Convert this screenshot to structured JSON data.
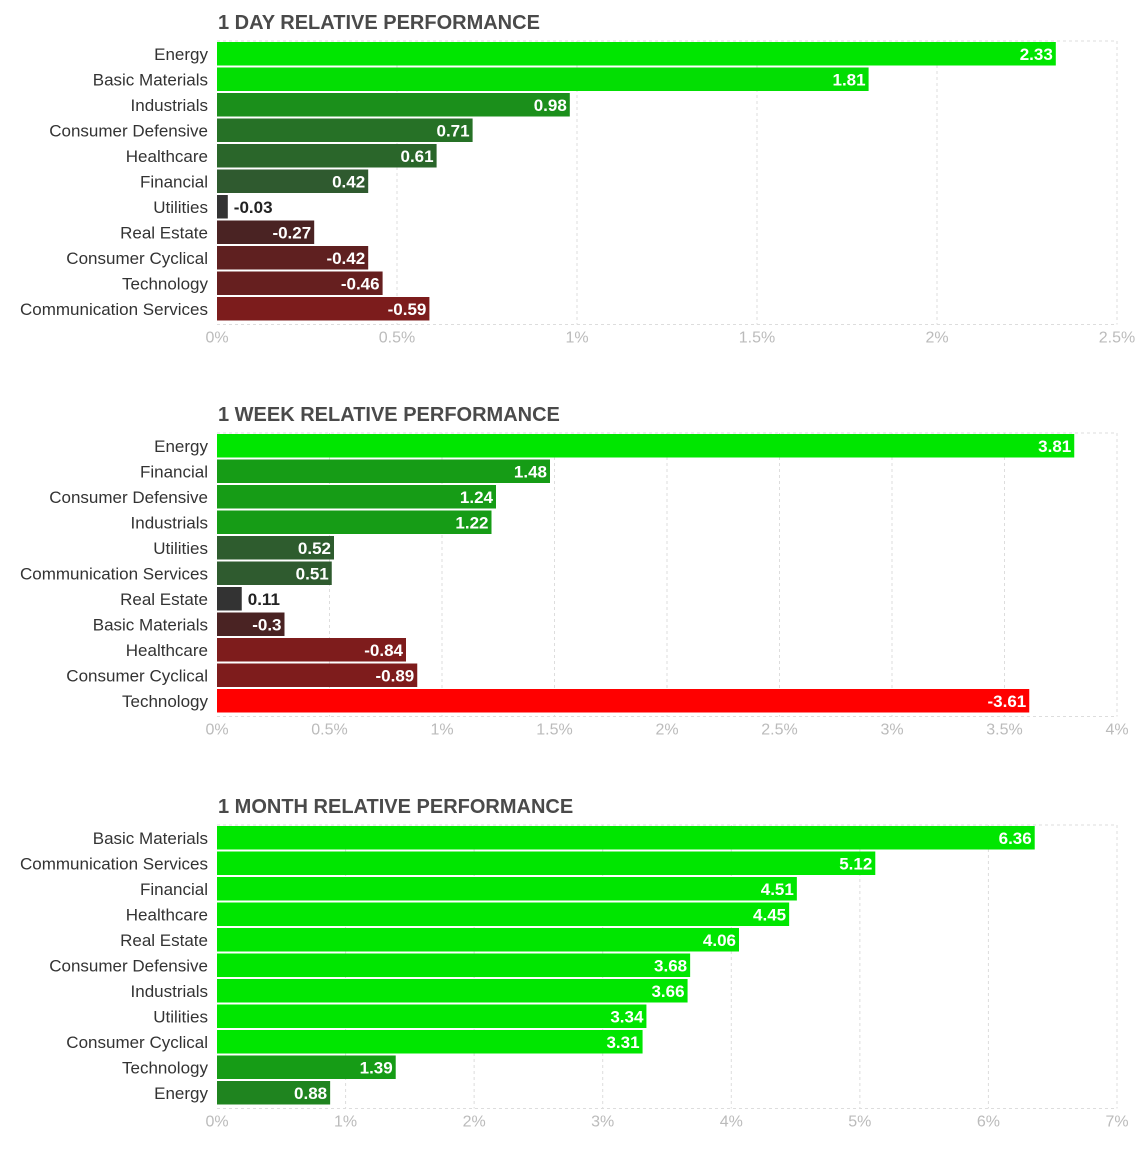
{
  "chart_data": [
    {
      "type": "bar",
      "title": "1 DAY RELATIVE PERFORMANCE",
      "categories": [
        "Energy",
        "Basic Materials",
        "Industrials",
        "Consumer Defensive",
        "Healthcare",
        "Financial",
        "Utilities",
        "Real Estate",
        "Consumer Cyclical",
        "Technology",
        "Communication Services"
      ],
      "values": [
        2.33,
        1.81,
        0.98,
        0.71,
        0.61,
        0.42,
        -0.03,
        -0.27,
        -0.42,
        -0.46,
        -0.59
      ],
      "value_labels": [
        "2.33",
        "1.81",
        "0.98",
        "0.71",
        "0.61",
        "0.42",
        "-0.03",
        "-0.27",
        "-0.42",
        "-0.46",
        "-0.59"
      ],
      "xlim": [
        0,
        2.5
      ],
      "ticks": [
        0,
        0.5,
        1,
        1.5,
        2,
        2.5
      ],
      "tick_labels": [
        "0%",
        "0.5%",
        "1%",
        "1.5%",
        "2%",
        "2.5%"
      ],
      "grid": true,
      "orientation": "horizontal",
      "bar_length": "absolute value"
    },
    {
      "type": "bar",
      "title": "1 WEEK RELATIVE PERFORMANCE",
      "categories": [
        "Energy",
        "Financial",
        "Consumer Defensive",
        "Industrials",
        "Utilities",
        "Communication Services",
        "Real Estate",
        "Basic Materials",
        "Healthcare",
        "Consumer Cyclical",
        "Technology"
      ],
      "values": [
        3.81,
        1.48,
        1.24,
        1.22,
        0.52,
        0.51,
        0.11,
        -0.3,
        -0.84,
        -0.89,
        -3.61
      ],
      "value_labels": [
        "3.81",
        "1.48",
        "1.24",
        "1.22",
        "0.52",
        "0.51",
        "0.11",
        "-0.3",
        "-0.84",
        "-0.89",
        "-3.61"
      ],
      "xlim": [
        0,
        4
      ],
      "ticks": [
        0,
        0.5,
        1,
        1.5,
        2,
        2.5,
        3,
        3.5,
        4
      ],
      "tick_labels": [
        "0%",
        "0.5%",
        "1%",
        "1.5%",
        "2%",
        "2.5%",
        "3%",
        "3.5%",
        "4%"
      ],
      "grid": true,
      "orientation": "horizontal",
      "bar_length": "absolute value"
    },
    {
      "type": "bar",
      "title": "1 MONTH RELATIVE PERFORMANCE",
      "categories": [
        "Basic Materials",
        "Communication Services",
        "Financial",
        "Healthcare",
        "Real Estate",
        "Consumer Defensive",
        "Industrials",
        "Utilities",
        "Consumer Cyclical",
        "Technology",
        "Energy"
      ],
      "values": [
        6.36,
        5.12,
        4.51,
        4.45,
        4.06,
        3.68,
        3.66,
        3.34,
        3.31,
        1.39,
        0.88
      ],
      "value_labels": [
        "6.36",
        "5.12",
        "4.51",
        "4.45",
        "4.06",
        "3.68",
        "3.66",
        "3.34",
        "3.31",
        "1.39",
        "0.88"
      ],
      "xlim": [
        0,
        7
      ],
      "ticks": [
        0,
        1,
        2,
        3,
        4,
        5,
        6,
        7
      ],
      "tick_labels": [
        "0%",
        "1%",
        "2%",
        "3%",
        "4%",
        "5%",
        "6%",
        "7%"
      ],
      "grid": true,
      "orientation": "horizontal",
      "bar_length": "absolute value"
    }
  ],
  "colors": {
    "positive_strong": "#00e600",
    "positive_mid": "#169c16",
    "positive_weak": "#2f5a2f",
    "neutral": "#333333",
    "negative_weak": "#4a2323",
    "negative_mid": "#7e1c1c",
    "negative_strong": "#ff0000",
    "grid": "#dddddd",
    "tick_text": "#bbbbbb",
    "category_text": "#333333",
    "value_text_on_bar": "#ffffff",
    "value_text_outside": "#222222"
  }
}
